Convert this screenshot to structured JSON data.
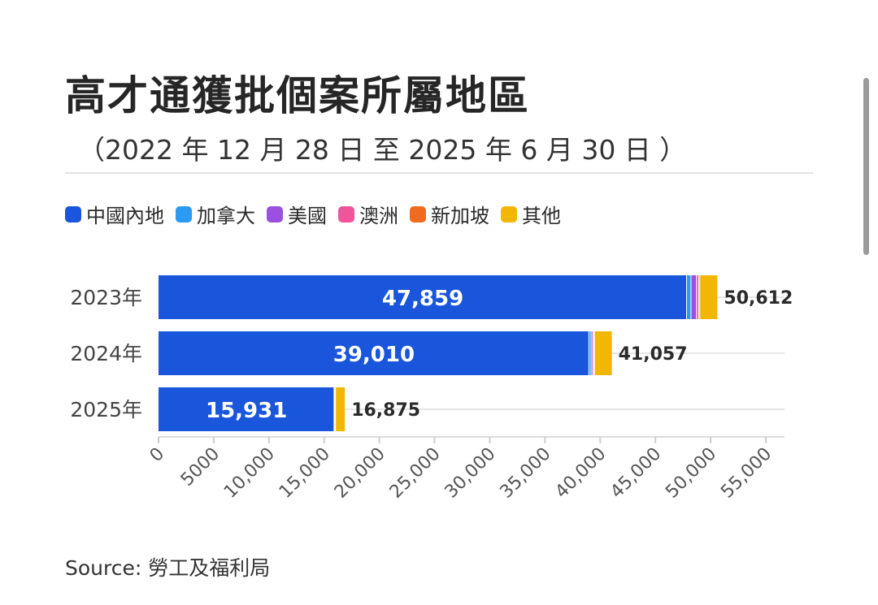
{
  "header": {
    "title": "高才通獲批個案所屬地區",
    "subtitle": "（2022 年 12 月 28 日 至 2025 年 6 月 30 日 ）"
  },
  "legend": [
    {
      "label": "中國內地",
      "color": "#1a56db"
    },
    {
      "label": "加拿大",
      "color": "#2b9af3"
    },
    {
      "label": "美國",
      "color": "#9b51e0"
    },
    {
      "label": "澳洲",
      "color": "#f0549b"
    },
    {
      "label": "新加坡",
      "color": "#f26b1d"
    },
    {
      "label": "其他",
      "color": "#f2b705"
    }
  ],
  "source": "Source: 勞工及福利局",
  "chart_data": {
    "type": "bar",
    "orientation": "horizontal",
    "stacked": true,
    "categories": [
      "2023年",
      "2024年",
      "2025年"
    ],
    "series": [
      {
        "name": "中國內地",
        "color": "#1a56db",
        "values": [
          47859,
          39010,
          15931
        ]
      },
      {
        "name": "加拿大",
        "color": "#2b9af3",
        "values": [
          400,
          200,
          60
        ]
      },
      {
        "name": "美國",
        "color": "#9b51e0",
        "values": [
          500,
          150,
          40
        ]
      },
      {
        "name": "澳洲",
        "color": "#f0549b",
        "values": [
          200,
          100,
          20
        ]
      },
      {
        "name": "新加坡",
        "color": "#f26b1d",
        "values": [
          100,
          50,
          10
        ]
      },
      {
        "name": "其他",
        "color": "#f2b705",
        "values": [
          1553,
          1547,
          814
        ]
      }
    ],
    "segment_labels": [
      "47,859",
      "39,010",
      "15,931"
    ],
    "total_labels": [
      "50,612",
      "41,057",
      "16,875"
    ],
    "totals": [
      50612,
      41057,
      16875
    ],
    "xlim": [
      0,
      55000
    ],
    "xticks": [
      0,
      5000,
      10000,
      15000,
      20000,
      25000,
      30000,
      35000,
      40000,
      45000,
      50000,
      55000
    ],
    "xtick_labels": [
      "0",
      "5000",
      "10,000",
      "15,000",
      "20,000",
      "25,000",
      "30,000",
      "35,000",
      "40,000",
      "45,000",
      "50,000",
      "55,000"
    ],
    "grid": true,
    "legend_position": "top-left"
  }
}
